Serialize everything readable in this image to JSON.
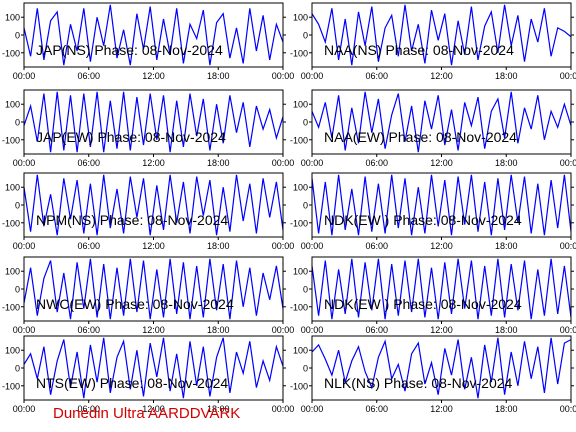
{
  "figure": {
    "footer": "Dunedin Ultra AARDDVARK",
    "colors": {
      "trace": "#0000ff",
      "axes": "#000000",
      "label": "#000000",
      "footer": "#d40000"
    }
  },
  "chart_data": [
    {
      "type": "line",
      "title": "JAP(NS) Phase: 08-Nov-2024",
      "x_ticks": [
        "00:00",
        "06:00",
        "12:00",
        "18:00",
        "00:00"
      ],
      "y_ticks": [
        100,
        0,
        -100
      ],
      "ylim": [
        -180,
        180
      ],
      "grid": false,
      "series": [
        {
          "values": [
            40,
            -120,
            150,
            -140,
            80,
            130,
            -170,
            60,
            -90,
            150,
            -150,
            100,
            -60,
            170,
            -130,
            30,
            -170,
            120,
            -80,
            160,
            -140,
            90,
            -110,
            150,
            -160,
            60,
            -20,
            140,
            -170,
            70,
            120,
            -130,
            40,
            -160,
            150,
            -90,
            110,
            -140,
            60,
            -40
          ]
        }
      ]
    },
    {
      "type": "line",
      "title": "NAA(NS) Phase: 08-Nov-2024",
      "x_ticks": [
        "00:00",
        "06:00",
        "12:00",
        "18:00",
        "00:00"
      ],
      "y_ticks": [
        100,
        0,
        -100
      ],
      "ylim": [
        -180,
        180
      ],
      "grid": false,
      "series": [
        {
          "values": [
            120,
            60,
            -40,
            150,
            -140,
            90,
            -170,
            130,
            -60,
            160,
            -150,
            40,
            110,
            -120,
            170,
            -90,
            60,
            -160,
            140,
            -30,
            120,
            -170,
            80,
            -110,
            160,
            -140,
            50,
            130,
            -100,
            170,
            -60,
            110,
            -150,
            90,
            -40,
            150,
            -120,
            40,
            20,
            -10
          ]
        }
      ]
    },
    {
      "type": "line",
      "title": "JAP(EW) Phase: 08-Nov-2024",
      "x_ticks": [
        "00:00",
        "06:00",
        "12:00",
        "18:00",
        "00:00"
      ],
      "y_ticks": [
        100,
        0,
        -100
      ],
      "ylim": [
        -180,
        180
      ],
      "grid": false,
      "series": [
        {
          "values": [
            -20,
            90,
            -110,
            160,
            -170,
            170,
            -160,
            150,
            -170,
            160,
            -140,
            170,
            -170,
            120,
            -150,
            170,
            -160,
            140,
            -130,
            160,
            -100,
            150,
            -170,
            120,
            -140,
            160,
            -80,
            130,
            -160,
            100,
            -120,
            150,
            -60,
            110,
            -140,
            90,
            -40,
            70,
            -90,
            30
          ]
        }
      ]
    },
    {
      "type": "line",
      "title": "NAA(EW) Phase: 08-Nov-2024",
      "x_ticks": [
        "00:00",
        "06:00",
        "12:00",
        "18:00",
        "00:00"
      ],
      "y_ticks": [
        100,
        0,
        -100
      ],
      "ylim": [
        -180,
        180
      ],
      "grid": false,
      "series": [
        {
          "values": [
            60,
            -30,
            110,
            -90,
            150,
            -160,
            80,
            -120,
            170,
            -60,
            130,
            -150,
            40,
            160,
            -110,
            90,
            -170,
            120,
            -40,
            150,
            -130,
            70,
            -160,
            110,
            -20,
            140,
            -150,
            60,
            130,
            -90,
            170,
            -120,
            80,
            -40,
            150,
            -100,
            60,
            -30,
            100,
            -20
          ]
        }
      ]
    },
    {
      "type": "line",
      "title": "NPM(NS) Phase: 08-Nov-2024",
      "x_ticks": [
        "00:00",
        "06:00",
        "12:00",
        "18:00",
        "00:00"
      ],
      "y_ticks": [
        100,
        0,
        -100
      ],
      "ylim": [
        -180,
        180
      ],
      "grid": false,
      "series": [
        {
          "values": [
            100,
            -150,
            170,
            -120,
            60,
            -170,
            150,
            -80,
            140,
            -160,
            120,
            -170,
            170,
            -130,
            90,
            -160,
            160,
            -70,
            150,
            -170,
            110,
            -140,
            170,
            -100,
            130,
            -160,
            160,
            -60,
            140,
            -170,
            100,
            -150,
            170,
            -90,
            120,
            -160,
            150,
            -70,
            130,
            -140
          ]
        }
      ]
    },
    {
      "type": "line",
      "title": "NDK(EW ) Phase: 08-Nov-2024",
      "x_ticks": [
        "00:00",
        "06:00",
        "12:00",
        "18:00",
        "00:00"
      ],
      "y_ticks": [
        100,
        0,
        -100
      ],
      "ylim": [
        -180,
        180
      ],
      "grid": false,
      "series": [
        {
          "values": [
            150,
            -160,
            130,
            -170,
            170,
            -140,
            90,
            -170,
            160,
            -150,
            120,
            -160,
            170,
            -130,
            150,
            -170,
            100,
            -160,
            170,
            -120,
            140,
            -170,
            160,
            -110,
            170,
            -150,
            130,
            -170,
            150,
            -140,
            170,
            -100,
            160,
            -160,
            120,
            -170,
            140,
            -130,
            170,
            -150
          ]
        }
      ]
    },
    {
      "type": "line",
      "title": "NWC(EW) Phase: 08-Nov-2024",
      "x_ticks": [
        "00:00",
        "06:00",
        "12:00",
        "18:00",
        "00:00"
      ],
      "y_ticks": [
        100,
        0,
        -100
      ],
      "ylim": [
        -180,
        180
      ],
      "grid": false,
      "series": [
        {
          "values": [
            -80,
            120,
            -150,
            60,
            160,
            -130,
            90,
            -170,
            150,
            -110,
            170,
            -160,
            140,
            -170,
            120,
            -150,
            170,
            -130,
            160,
            -170,
            110,
            -160,
            170,
            -140,
            150,
            -170,
            130,
            -160,
            170,
            -120,
            140,
            -170,
            160,
            -100,
            120,
            -150,
            90,
            -60,
            130,
            -110
          ]
        }
      ]
    },
    {
      "type": "line",
      "title": "NDK(EW ) Phase: 08-Nov-2024",
      "x_ticks": [
        "00:00",
        "06:00",
        "12:00",
        "18:00",
        "00:00"
      ],
      "y_ticks": [
        100,
        0,
        -100
      ],
      "ylim": [
        -180,
        180
      ],
      "grid": false,
      "series": [
        {
          "values": [
            130,
            -150,
            160,
            -170,
            110,
            -140,
            170,
            -160,
            150,
            -120,
            170,
            -170,
            140,
            -150,
            160,
            -130,
            170,
            -160,
            120,
            -170,
            150,
            -140,
            170,
            -110,
            160,
            -170,
            130,
            -150,
            170,
            -160,
            140,
            -120,
            160,
            -170,
            110,
            -150,
            170,
            -140,
            130,
            -160
          ]
        }
      ]
    },
    {
      "type": "line",
      "title": "NTS(EW) Phase: 08-Nov-2024",
      "x_ticks": [
        "00:00",
        "06:00",
        "12:00",
        "18:00",
        "00:00"
      ],
      "y_ticks": [
        100,
        0,
        -100
      ],
      "ylim": [
        -180,
        180
      ],
      "grid": false,
      "series": [
        {
          "values": [
            20,
            80,
            -60,
            120,
            -150,
            40,
            160,
            -110,
            90,
            -170,
            130,
            -80,
            170,
            -140,
            60,
            150,
            -120,
            100,
            -160,
            140,
            -50,
            170,
            -130,
            80,
            -170,
            150,
            -100,
            120,
            -160,
            60,
            170,
            -140,
            90,
            -30,
            150,
            -110,
            40,
            -70,
            120,
            10
          ]
        }
      ]
    },
    {
      "type": "line",
      "title": "NLK(NS) Phase: 08-Nov-2024",
      "x_ticks": [
        "00:00",
        "06:00",
        "12:00",
        "18:00",
        "00:00"
      ],
      "y_ticks": [
        100,
        0,
        -100
      ],
      "ylim": [
        -180,
        180
      ],
      "grid": false,
      "series": [
        {
          "values": [
            90,
            130,
            50,
            -40,
            100,
            -80,
            40,
            120,
            -20,
            -110,
            60,
            150,
            -60,
            20,
            -130,
            80,
            140,
            -90,
            30,
            -150,
            110,
            -40,
            160,
            -120,
            60,
            -170,
            130,
            -80,
            170,
            -150,
            90,
            -100,
            150,
            -60,
            120,
            -140,
            170,
            -90,
            140,
            160
          ]
        }
      ]
    }
  ]
}
